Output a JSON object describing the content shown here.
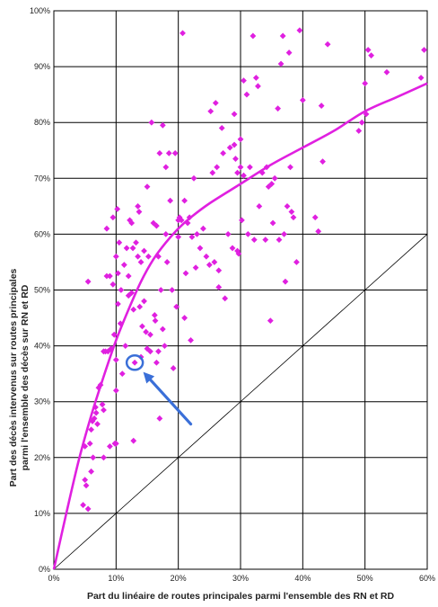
{
  "chart_data": {
    "type": "scatter",
    "xlabel": "Part du linéaire de routes principales parmi l'ensemble des RN et RD",
    "ylabel_lines": [
      "Part des décès intervenus sur routes principales",
      "parmi l'ensemble des décès sur RN et RD"
    ],
    "x_ticks": [
      "0%",
      "10%",
      "20%",
      "30%",
      "40%",
      "50%",
      "60%"
    ],
    "y_ticks": [
      "0%",
      "10%",
      "20%",
      "30%",
      "40%",
      "50%",
      "60%",
      "70%",
      "80%",
      "90%",
      "100%"
    ],
    "xlim": [
      0,
      0.6
    ],
    "ylim": [
      0,
      1.0
    ],
    "grid": true,
    "colors": {
      "points": "#e020e0",
      "trend": "#e020e0",
      "diagonal": "#000000",
      "highlight": "#3a6fd8",
      "grid": "#000000"
    },
    "points": [
      [
        0.055,
        0.515
      ],
      [
        0.05,
        0.22
      ],
      [
        0.047,
        0.115
      ],
      [
        0.05,
        0.16
      ],
      [
        0.052,
        0.15
      ],
      [
        0.055,
        0.108
      ],
      [
        0.058,
        0.225
      ],
      [
        0.06,
        0.25
      ],
      [
        0.062,
        0.265
      ],
      [
        0.06,
        0.175
      ],
      [
        0.063,
        0.2
      ],
      [
        0.065,
        0.27
      ],
      [
        0.067,
        0.29
      ],
      [
        0.068,
        0.28
      ],
      [
        0.07,
        0.26
      ],
      [
        0.072,
        0.325
      ],
      [
        0.075,
        0.33
      ],
      [
        0.078,
        0.295
      ],
      [
        0.08,
        0.285
      ],
      [
        0.08,
        0.2
      ],
      [
        0.08,
        0.39
      ],
      [
        0.083,
        0.39
      ],
      [
        0.085,
        0.61
      ],
      [
        0.085,
        0.525
      ],
      [
        0.087,
        0.39
      ],
      [
        0.09,
        0.525
      ],
      [
        0.09,
        0.22
      ],
      [
        0.092,
        0.395
      ],
      [
        0.095,
        0.63
      ],
      [
        0.095,
        0.51
      ],
      [
        0.097,
        0.42
      ],
      [
        0.098,
        0.225
      ],
      [
        0.1,
        0.56
      ],
      [
        0.1,
        0.375
      ],
      [
        0.1,
        0.225
      ],
      [
        0.1,
        0.32
      ],
      [
        0.102,
        0.645
      ],
      [
        0.103,
        0.53
      ],
      [
        0.103,
        0.475
      ],
      [
        0.105,
        0.585
      ],
      [
        0.107,
        0.44
      ],
      [
        0.108,
        0.5
      ],
      [
        0.11,
        0.35
      ],
      [
        0.113,
        0.545
      ],
      [
        0.115,
        0.4
      ],
      [
        0.117,
        0.575
      ],
      [
        0.12,
        0.525
      ],
      [
        0.12,
        0.49
      ],
      [
        0.122,
        0.625
      ],
      [
        0.125,
        0.62
      ],
      [
        0.125,
        0.495
      ],
      [
        0.127,
        0.575
      ],
      [
        0.128,
        0.465
      ],
      [
        0.128,
        0.23
      ],
      [
        0.13,
        0.37
      ],
      [
        0.132,
        0.585
      ],
      [
        0.135,
        0.56
      ],
      [
        0.135,
        0.65
      ],
      [
        0.137,
        0.64
      ],
      [
        0.138,
        0.47
      ],
      [
        0.14,
        0.55
      ],
      [
        0.14,
        0.38
      ],
      [
        0.142,
        0.435
      ],
      [
        0.145,
        0.48
      ],
      [
        0.145,
        0.57
      ],
      [
        0.148,
        0.425
      ],
      [
        0.15,
        0.685
      ],
      [
        0.15,
        0.395
      ],
      [
        0.152,
        0.56
      ],
      [
        0.155,
        0.42
      ],
      [
        0.155,
        0.39
      ],
      [
        0.157,
        0.8
      ],
      [
        0.16,
        0.62
      ],
      [
        0.162,
        0.455
      ],
      [
        0.163,
        0.445
      ],
      [
        0.165,
        0.37
      ],
      [
        0.165,
        0.615
      ],
      [
        0.168,
        0.56
      ],
      [
        0.168,
        0.39
      ],
      [
        0.17,
        0.27
      ],
      [
        0.17,
        0.745
      ],
      [
        0.172,
        0.5
      ],
      [
        0.175,
        0.795
      ],
      [
        0.175,
        0.43
      ],
      [
        0.178,
        0.4
      ],
      [
        0.18,
        0.6
      ],
      [
        0.18,
        0.72
      ],
      [
        0.182,
        0.55
      ],
      [
        0.185,
        0.745
      ],
      [
        0.187,
        0.66
      ],
      [
        0.19,
        0.5
      ],
      [
        0.192,
        0.36
      ],
      [
        0.195,
        0.745
      ],
      [
        0.197,
        0.47
      ],
      [
        0.2,
        0.595
      ],
      [
        0.2,
        0.625
      ],
      [
        0.202,
        0.63
      ],
      [
        0.205,
        0.625
      ],
      [
        0.207,
        0.96
      ],
      [
        0.21,
        0.66
      ],
      [
        0.21,
        0.45
      ],
      [
        0.212,
        0.53
      ],
      [
        0.215,
        0.62
      ],
      [
        0.218,
        0.63
      ],
      [
        0.22,
        0.41
      ],
      [
        0.222,
        0.595
      ],
      [
        0.225,
        0.7
      ],
      [
        0.228,
        0.54
      ],
      [
        0.23,
        0.6
      ],
      [
        0.235,
        0.575
      ],
      [
        0.24,
        0.61
      ],
      [
        0.245,
        0.56
      ],
      [
        0.25,
        0.545
      ],
      [
        0.252,
        0.82
      ],
      [
        0.255,
        0.71
      ],
      [
        0.258,
        0.55
      ],
      [
        0.26,
        0.835
      ],
      [
        0.262,
        0.72
      ],
      [
        0.265,
        0.535
      ],
      [
        0.265,
        0.505
      ],
      [
        0.27,
        0.79
      ],
      [
        0.272,
        0.745
      ],
      [
        0.275,
        0.485
      ],
      [
        0.28,
        0.6
      ],
      [
        0.283,
        0.755
      ],
      [
        0.287,
        0.575
      ],
      [
        0.29,
        0.815
      ],
      [
        0.29,
        0.76
      ],
      [
        0.292,
        0.735
      ],
      [
        0.295,
        0.57
      ],
      [
        0.295,
        0.71
      ],
      [
        0.297,
        0.565
      ],
      [
        0.3,
        0.77
      ],
      [
        0.3,
        0.72
      ],
      [
        0.302,
        0.625
      ],
      [
        0.305,
        0.875
      ],
      [
        0.305,
        0.705
      ],
      [
        0.31,
        0.85
      ],
      [
        0.312,
        0.6
      ],
      [
        0.315,
        0.72
      ],
      [
        0.32,
        0.955
      ],
      [
        0.322,
        0.59
      ],
      [
        0.325,
        0.88
      ],
      [
        0.328,
        0.865
      ],
      [
        0.33,
        0.65
      ],
      [
        0.335,
        0.71
      ],
      [
        0.34,
        0.59
      ],
      [
        0.342,
        0.72
      ],
      [
        0.345,
        0.685
      ],
      [
        0.348,
        0.445
      ],
      [
        0.35,
        0.69
      ],
      [
        0.352,
        0.62
      ],
      [
        0.355,
        0.7
      ],
      [
        0.36,
        0.825
      ],
      [
        0.362,
        0.59
      ],
      [
        0.365,
        0.905
      ],
      [
        0.368,
        0.955
      ],
      [
        0.37,
        0.6
      ],
      [
        0.372,
        0.515
      ],
      [
        0.375,
        0.65
      ],
      [
        0.378,
        0.925
      ],
      [
        0.38,
        0.72
      ],
      [
        0.382,
        0.64
      ],
      [
        0.385,
        0.63
      ],
      [
        0.39,
        0.55
      ],
      [
        0.395,
        0.965
      ],
      [
        0.4,
        0.84
      ],
      [
        0.42,
        0.63
      ],
      [
        0.425,
        0.605
      ],
      [
        0.43,
        0.83
      ],
      [
        0.432,
        0.73
      ],
      [
        0.44,
        0.94
      ],
      [
        0.49,
        0.785
      ],
      [
        0.495,
        0.8
      ],
      [
        0.5,
        0.87
      ],
      [
        0.502,
        0.815
      ],
      [
        0.505,
        0.93
      ],
      [
        0.51,
        0.92
      ],
      [
        0.535,
        0.89
      ],
      [
        0.59,
        0.88
      ],
      [
        0.595,
        0.93
      ]
    ],
    "trend": [
      [
        0.0,
        0.0
      ],
      [
        0.02,
        0.1
      ],
      [
        0.04,
        0.195
      ],
      [
        0.06,
        0.275
      ],
      [
        0.08,
        0.345
      ],
      [
        0.1,
        0.41
      ],
      [
        0.12,
        0.465
      ],
      [
        0.14,
        0.515
      ],
      [
        0.16,
        0.555
      ],
      [
        0.18,
        0.585
      ],
      [
        0.2,
        0.61
      ],
      [
        0.22,
        0.63
      ],
      [
        0.25,
        0.655
      ],
      [
        0.3,
        0.69
      ],
      [
        0.35,
        0.725
      ],
      [
        0.4,
        0.755
      ],
      [
        0.45,
        0.785
      ],
      [
        0.5,
        0.82
      ],
      [
        0.55,
        0.845
      ],
      [
        0.6,
        0.87
      ]
    ],
    "diagonal": [
      [
        0.0,
        0.0
      ],
      [
        0.6,
        0.6
      ]
    ],
    "highlight": {
      "point": [
        0.13,
        0.37
      ],
      "arrow_from": [
        0.22,
        0.26
      ]
    }
  }
}
